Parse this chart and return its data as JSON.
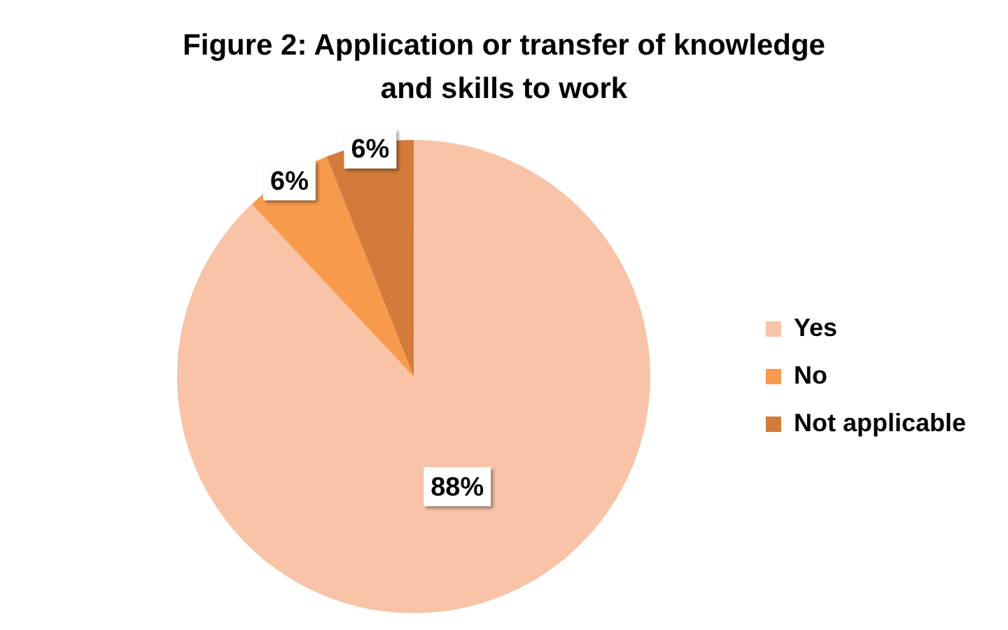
{
  "chart_data": {
    "type": "pie",
    "title": "Figure 2: Application or transfer of knowledge and skills to work",
    "categories": [
      "Yes",
      "No",
      "Not applicable"
    ],
    "values": [
      88,
      6,
      6
    ],
    "colors": [
      "#f9c3a7",
      "#f79a4c",
      "#d27b3b"
    ],
    "value_labels": [
      "88%",
      "6%",
      "6%"
    ],
    "legend": "right"
  }
}
